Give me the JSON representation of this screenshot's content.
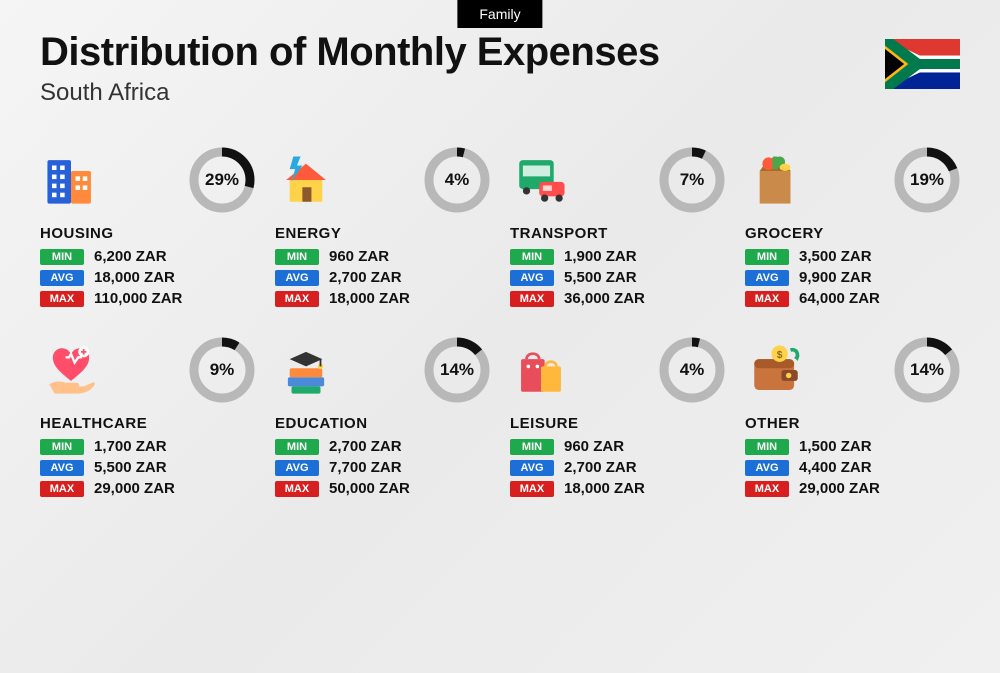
{
  "tag_label": "Family",
  "title": "Distribution of Monthly Expenses",
  "subtitle": "South Africa",
  "currency": "ZAR",
  "donut": {
    "radius": 28,
    "stroke_width": 9,
    "track_color": "#b8b8b8",
    "fill_color": "#111111"
  },
  "badge_colors": {
    "min": "#1fa94d",
    "avg": "#1c6fd6",
    "max": "#d81f1f"
  },
  "badge_labels": {
    "min": "MIN",
    "avg": "AVG",
    "max": "MAX"
  },
  "categories": [
    {
      "key": "housing",
      "name": "HOUSING",
      "percent": 29,
      "min": "6,200 ZAR",
      "avg": "18,000 ZAR",
      "max": "110,000 ZAR",
      "icon": "buildings"
    },
    {
      "key": "energy",
      "name": "ENERGY",
      "percent": 4,
      "min": "960 ZAR",
      "avg": "2,700 ZAR",
      "max": "18,000 ZAR",
      "icon": "house-energy"
    },
    {
      "key": "transport",
      "name": "TRANSPORT",
      "percent": 7,
      "min": "1,900 ZAR",
      "avg": "5,500 ZAR",
      "max": "36,000 ZAR",
      "icon": "bus-car"
    },
    {
      "key": "grocery",
      "name": "GROCERY",
      "percent": 19,
      "min": "3,500 ZAR",
      "avg": "9,900 ZAR",
      "max": "64,000 ZAR",
      "icon": "grocery-bag"
    },
    {
      "key": "healthcare",
      "name": "HEALTHCARE",
      "percent": 9,
      "min": "1,700 ZAR",
      "avg": "5,500 ZAR",
      "max": "29,000 ZAR",
      "icon": "heart-hand"
    },
    {
      "key": "education",
      "name": "EDUCATION",
      "percent": 14,
      "min": "2,700 ZAR",
      "avg": "7,700 ZAR",
      "max": "50,000 ZAR",
      "icon": "grad-books"
    },
    {
      "key": "leisure",
      "name": "LEISURE",
      "percent": 4,
      "min": "960 ZAR",
      "avg": "2,700 ZAR",
      "max": "18,000 ZAR",
      "icon": "shopping-bags"
    },
    {
      "key": "other",
      "name": "OTHER",
      "percent": 14,
      "min": "1,500 ZAR",
      "avg": "4,400 ZAR",
      "max": "29,000 ZAR",
      "icon": "wallet"
    }
  ],
  "flag": {
    "stripes": {
      "red": "#de3831",
      "blue": "#002395",
      "green": "#007a4d",
      "white": "#ffffff",
      "gold": "#ffb612",
      "black": "#000000"
    }
  }
}
